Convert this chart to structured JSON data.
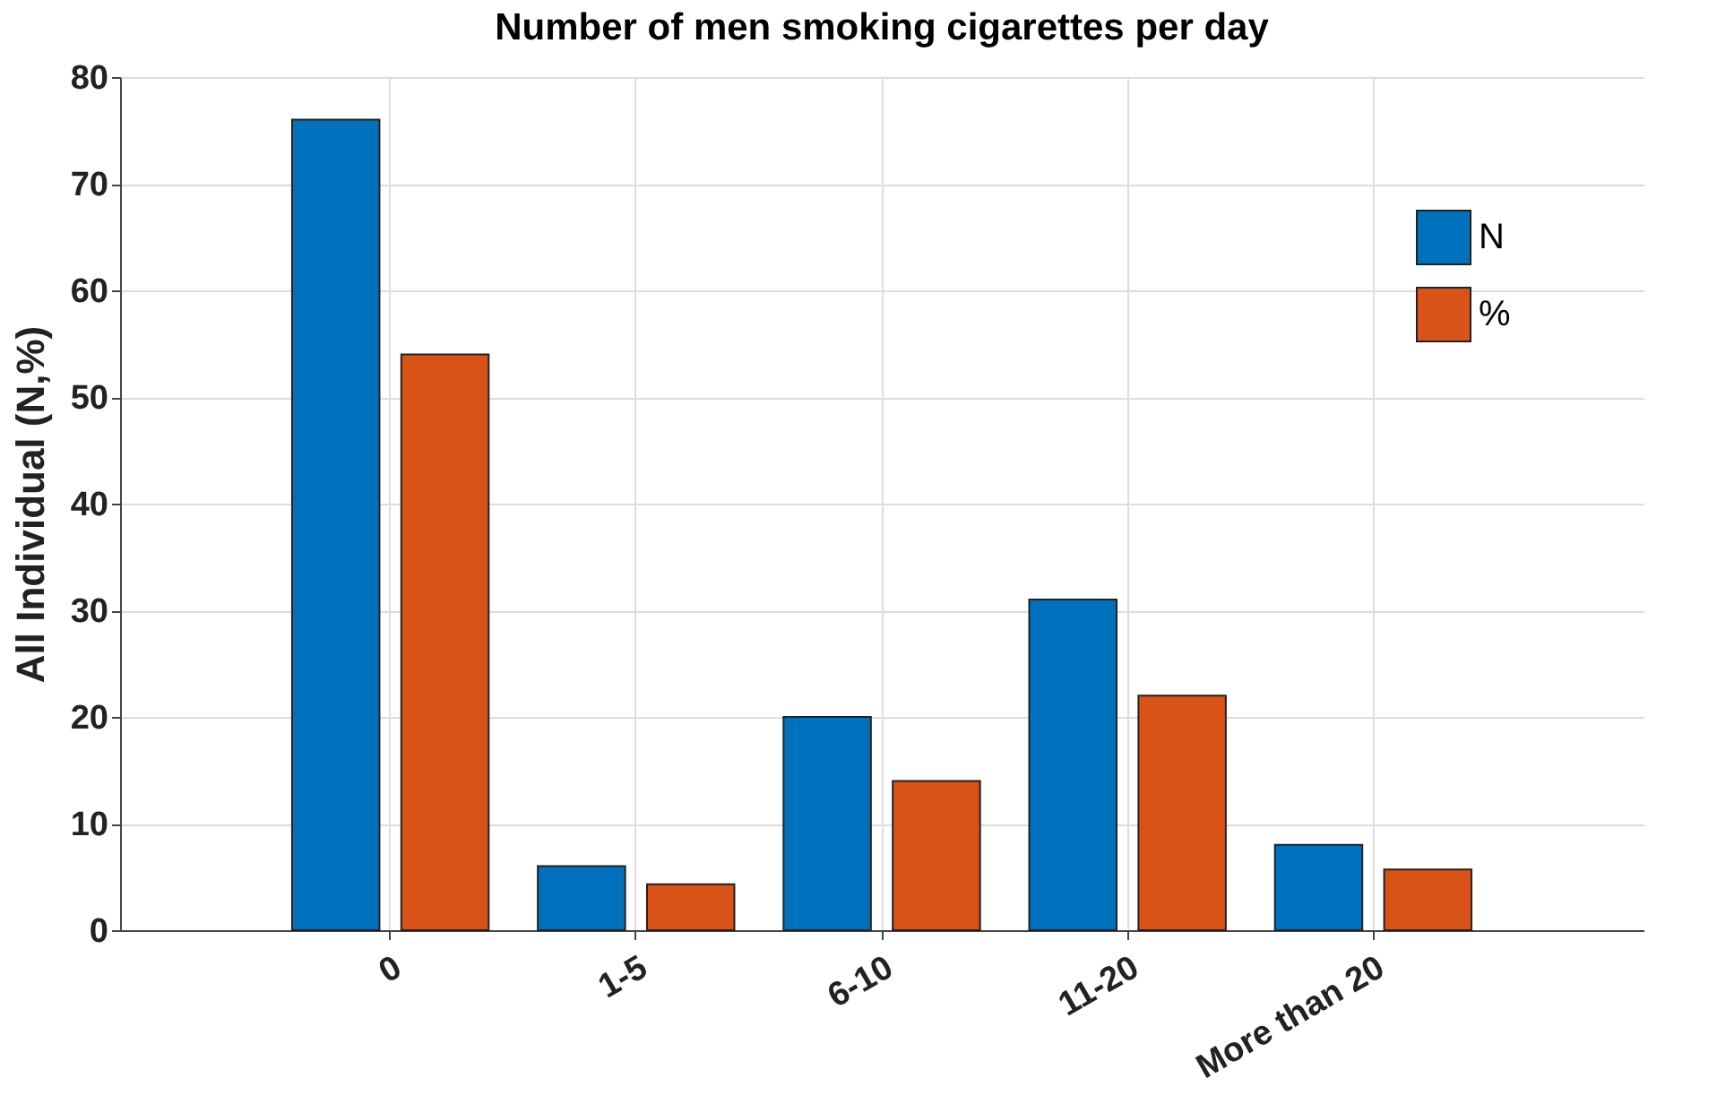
{
  "chart_data": {
    "type": "bar",
    "title": "Number of men smoking cigarettes per day",
    "ylabel": "All Individual (N,%)",
    "categories": [
      "0",
      "1-5",
      "6-10",
      "11-20",
      "More than 20"
    ],
    "series": [
      {
        "name": "N",
        "color": "#0072bd",
        "values": [
          76,
          6,
          20,
          31,
          8
        ]
      },
      {
        "name": "%",
        "color": "#d95319",
        "values": [
          54,
          4.3,
          14,
          22,
          5.7
        ]
      }
    ],
    "ylim": [
      0,
      80
    ],
    "yticks": [
      0,
      10,
      20,
      30,
      40,
      50,
      60,
      70,
      80
    ],
    "grid": true,
    "legend": "top right"
  }
}
